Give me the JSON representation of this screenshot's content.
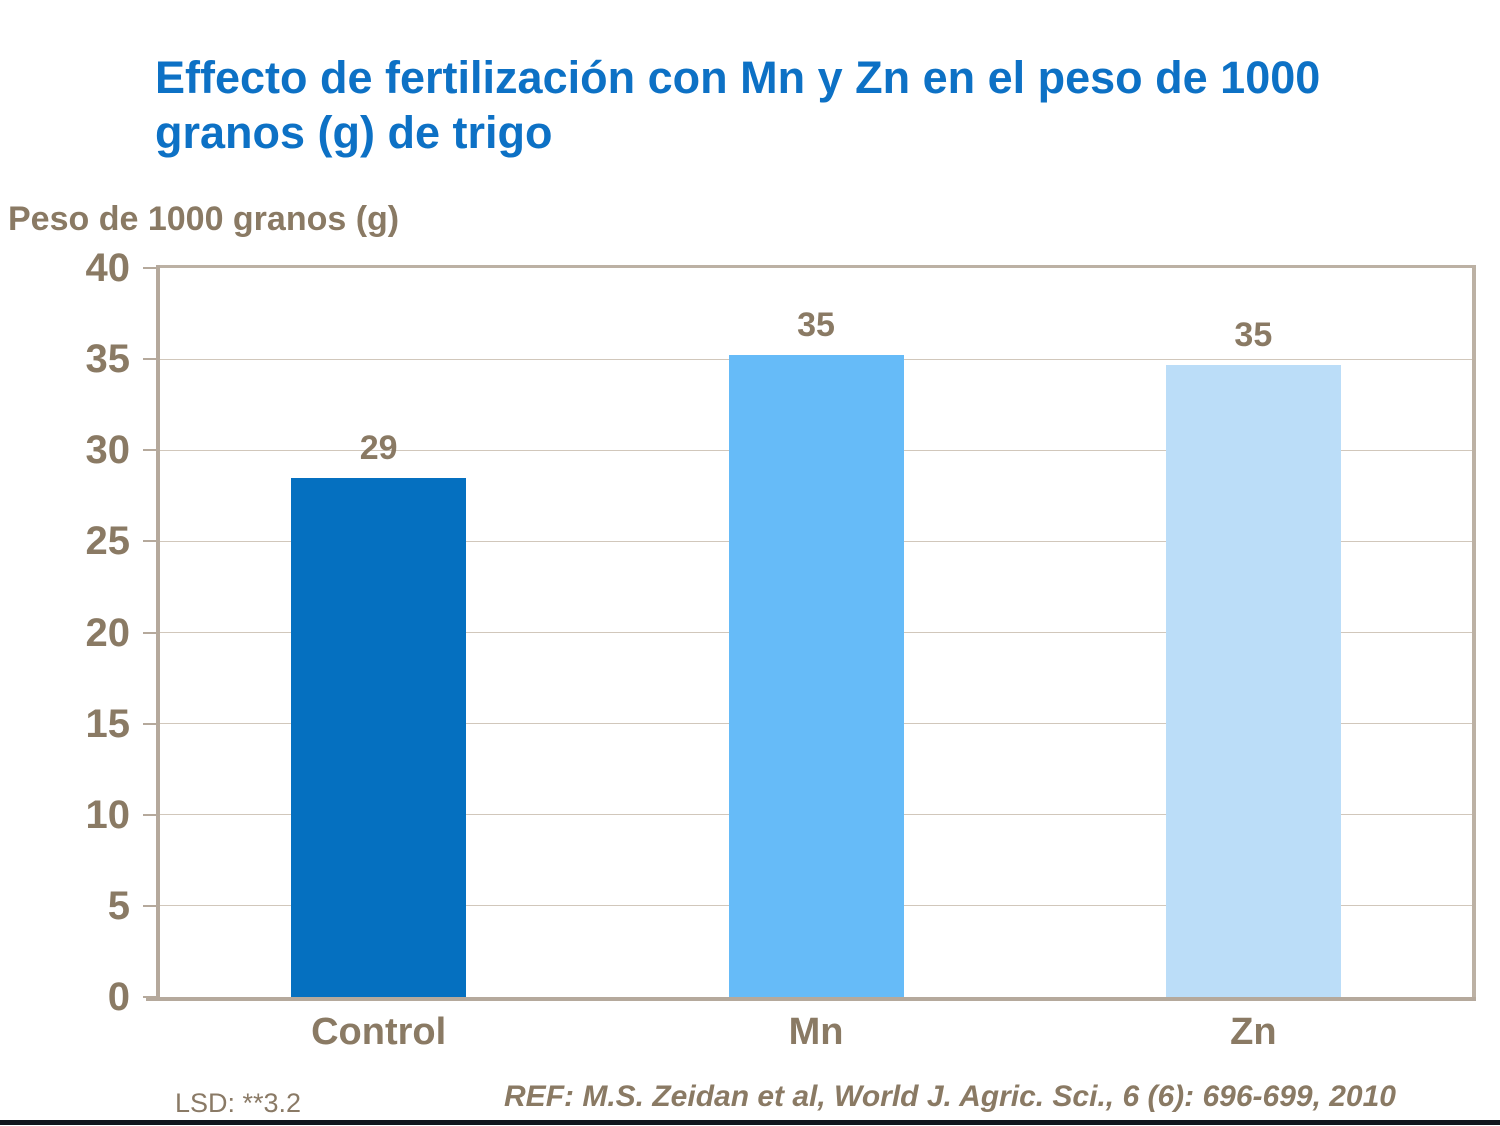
{
  "slide": {
    "title": "Effecto de fertilización con Mn y Zn en el peso de 1000 granos (g) de trigo",
    "y_axis_title": "Peso de 1000 granos (g)",
    "lsd_note": "LSD: **3.2",
    "reference": "REF: M.S. Zeidan et al, World J. Agric. Sci.,  6 (6): 696-699, 2010"
  },
  "colors": {
    "title_blue": "#0D71C5",
    "text_brown": "#8A7A64",
    "frame_tan": "#BCB1A4",
    "gridline_tan": "#D1C7BB",
    "bar_control_blue": "#0570C0",
    "bar_mn_blue": "#66BBF8",
    "bar_zn_blue": "#BBDDF8",
    "footer_dark": "#12151D"
  },
  "chart_data": {
    "type": "bar",
    "title": "Effecto de fertilización con Mn y Zn en el peso de 1000 granos (g) de trigo",
    "xlabel": "",
    "ylabel": "Peso de 1000 granos (g)",
    "categories": [
      "Control",
      "Mn",
      "Zn"
    ],
    "values": [
      29,
      35,
      35
    ],
    "bar_heights_as_drawn": [
      28.5,
      35.2,
      34.7
    ],
    "bar_colors": [
      "#0570C0",
      "#66BBF8",
      "#BBDDF8"
    ],
    "ylim": [
      0,
      40
    ],
    "yticks": [
      0,
      5,
      10,
      15,
      20,
      25,
      30,
      35,
      40
    ],
    "grid": true,
    "legend": false,
    "annotations": [
      "LSD: **3.2",
      "REF: M.S. Zeidan et al, World J. Agric. Sci.,  6 (6): 696-699, 2010"
    ]
  }
}
